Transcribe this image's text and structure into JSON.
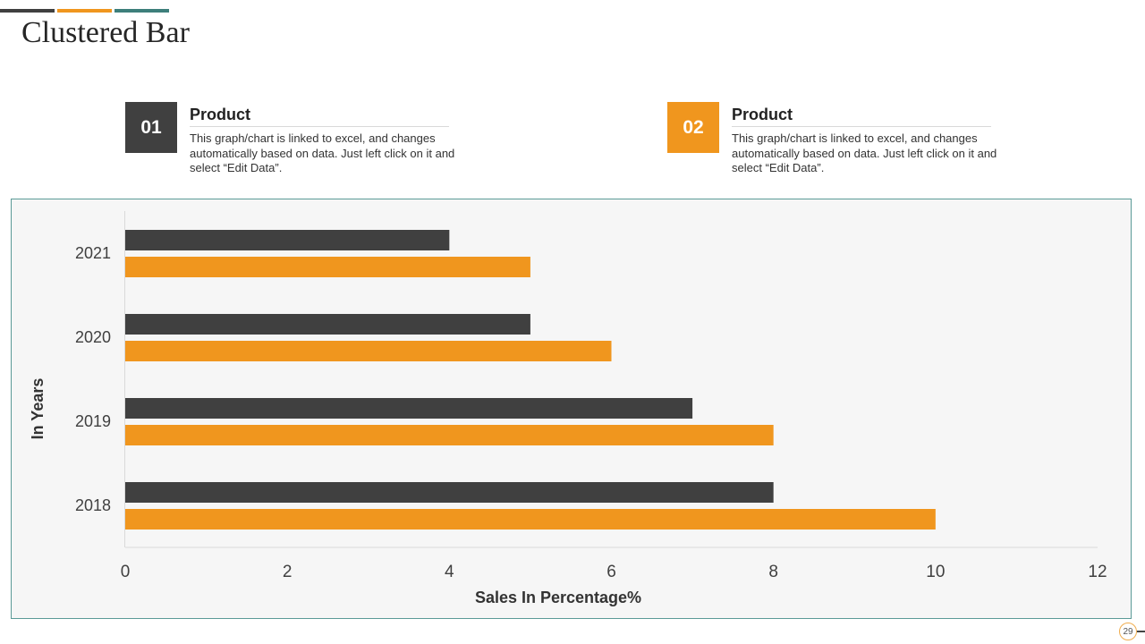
{
  "slide": {
    "title": "Clustered Bar",
    "page_number": "29",
    "accent_bars": [
      "#404040",
      "#f0961e",
      "#3d7f7b"
    ]
  },
  "legend": [
    {
      "number": "01",
      "title": "Product",
      "description": "This graph/chart is linked to excel,  and changes automatically based on data. Just left click on it and select “Edit Data”.",
      "color": "#404040"
    },
    {
      "number": "02",
      "title": "Product",
      "description": "This graph/chart is linked to excel,  and changes automatically based on data. Just left click on it and select “Edit Data”.",
      "color": "#f0961e"
    }
  ],
  "chart_data": {
    "type": "bar",
    "orientation": "horizontal",
    "categories": [
      "2021",
      "2020",
      "2019",
      "2018"
    ],
    "series": [
      {
        "values": [
          4,
          5,
          7,
          8
        ],
        "color": "#404040"
      },
      {
        "values": [
          5,
          6,
          8,
          10
        ],
        "color": "#f0961e"
      }
    ],
    "xlabel": "Sales In Percentage%",
    "ylabel": "In Years",
    "xlim": [
      0,
      12
    ],
    "xticks": [
      "0",
      "2",
      "4",
      "6",
      "8",
      "10",
      "12"
    ],
    "grid": false,
    "legend": "none"
  }
}
